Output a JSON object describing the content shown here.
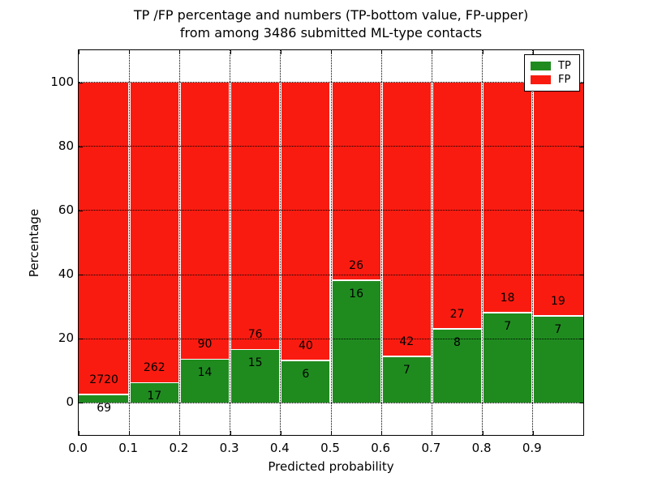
{
  "chart_data": {
    "type": "bar",
    "stacked": true,
    "normalized_to_percent": true,
    "title_line1": "TP /FP percentage and numbers (TP-bottom value, FP-upper)",
    "title_line2": "from among 3486 submitted ML-type contacts",
    "xlabel": "Predicted probability",
    "ylabel": "Percentage",
    "total_contacts": 3486,
    "x_tick_labels": [
      "0.0",
      "0.1",
      "0.2",
      "0.3",
      "0.4",
      "0.5",
      "0.6",
      "0.7",
      "0.8",
      "0.9"
    ],
    "bin_width": 0.1,
    "xlim": [
      0,
      1
    ],
    "y_ticks": [
      0,
      20,
      40,
      60,
      80,
      100
    ],
    "ylim": [
      -10,
      110
    ],
    "grid": "dotted",
    "series": [
      {
        "name": "TP",
        "color": "#1f8b1f",
        "counts": [
          69,
          17,
          14,
          15,
          6,
          16,
          7,
          8,
          7,
          7
        ]
      },
      {
        "name": "FP",
        "color": "#fa1b10",
        "counts": [
          2720,
          262,
          90,
          76,
          40,
          26,
          42,
          27,
          18,
          19
        ]
      }
    ],
    "tp_percent_heights": [
      2.47,
      6.09,
      13.46,
      16.48,
      13.04,
      38.1,
      14.29,
      22.86,
      28.0,
      26.92
    ],
    "legend": {
      "position": "upper right",
      "entries": [
        {
          "label": "TP",
          "color": "#1f8b1f"
        },
        {
          "label": "FP",
          "color": "#fa1b10"
        }
      ]
    }
  }
}
